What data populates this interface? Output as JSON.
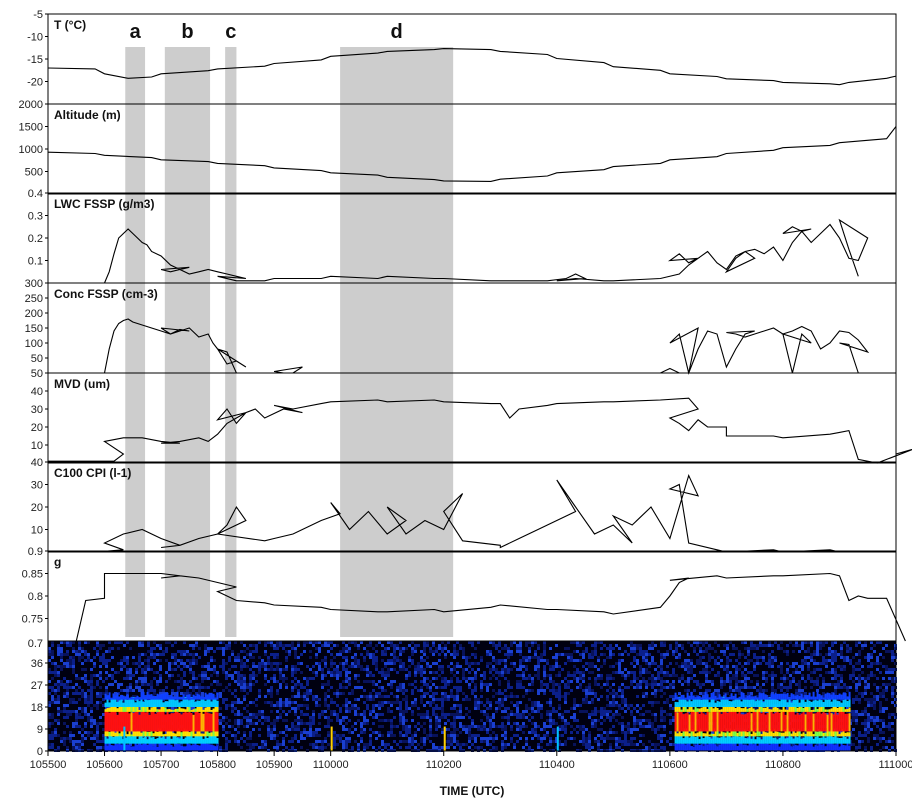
{
  "chart_data": {
    "type": "line",
    "x_range": [
      105500,
      111000
    ],
    "x_ticks": [
      "105500",
      "105600",
      "105700",
      "105800",
      "105900",
      "110000",
      "110200",
      "110400",
      "110600",
      "110800",
      "111000"
    ],
    "xlabel": "TIME (UTC)",
    "bands": [
      {
        "label": "a",
        "x0": 105622,
        "x1": 105643
      },
      {
        "label": "b",
        "x0": 105704,
        "x1": 105752
      },
      {
        "label": "c",
        "x0": 105768,
        "x1": 105820
      },
      {
        "label": "d",
        "x0": 110010,
        "x1": 110210
      }
    ],
    "panels": [
      {
        "label": "T (°C)",
        "ylim": [
          -25,
          -5
        ],
        "yticks": [
          "-5",
          "-10",
          "-15",
          "-20"
        ],
        "series": {
          "x": [
            105500,
            105550,
            105600,
            105625,
            105650,
            105700,
            105750,
            105800,
            105850,
            105900,
            105950,
            110000,
            110050,
            110100,
            110150,
            110200,
            110250,
            110300,
            110350,
            110400,
            110450,
            110500,
            110550,
            110600,
            110650,
            110700,
            110750,
            110800,
            110850,
            110900,
            110910,
            110950,
            111000
          ],
          "y": [
            -17,
            -17.2,
            -18.3,
            -19.3,
            -19,
            -18.3,
            -17.6,
            -17.2,
            -16.6,
            -16,
            -15.2,
            -14.4,
            -13.7,
            -13.3,
            -12.9,
            -12.7,
            -12.9,
            -13.3,
            -14,
            -14.9,
            -15.8,
            -16.7,
            -17.5,
            -18.3,
            -18.9,
            -19.4,
            -19.8,
            -20.2,
            -20.5,
            -20.7,
            -20.2,
            -19.3,
            -18.8
          ]
        }
      },
      {
        "label": "Altitude (m)",
        "ylim": [
          0,
          2000
        ],
        "yticks": [
          "2000",
          "1500",
          "1000",
          "500"
        ],
        "series": {
          "x": [
            105500,
            105550,
            105600,
            105650,
            105700,
            105750,
            105800,
            105850,
            105900,
            105950,
            110000,
            110050,
            110100,
            110150,
            110200,
            110250,
            110300,
            110350,
            110400,
            110450,
            110500,
            110550,
            110600,
            110650,
            110700,
            110750,
            110800,
            110850,
            110900,
            110950,
            111000
          ],
          "y": [
            930,
            900,
            860,
            810,
            760,
            720,
            680,
            630,
            580,
            520,
            470,
            420,
            370,
            320,
            290,
            280,
            330,
            400,
            470,
            540,
            610,
            680,
            760,
            830,
            900,
            970,
            1030,
            1080,
            1140,
            1230,
            1500
          ]
        }
      },
      {
        "label": "LWC FSSP (g/m3)",
        "ylim": [
          0,
          0.4
        ],
        "yticks": [
          "0.4",
          "0.3",
          "0.2",
          "0.1"
        ],
        "series": {
          "x": [
            105600,
            105605,
            105610,
            105615,
            105620,
            105625,
            105630,
            105635,
            105640,
            105645,
            105650,
            105660,
            105670,
            105680,
            105690,
            105700,
            105710,
            105720,
            105730,
            105740,
            105750,
            105760,
            105770,
            105780,
            105790,
            105800,
            105820,
            105850,
            105900,
            105950,
            110000,
            110050,
            110100,
            110150,
            110200,
            110250,
            110300,
            110350,
            110370,
            110380,
            110390,
            110400,
            110420,
            110450,
            110500,
            110550,
            110570,
            110580,
            110590,
            110600,
            110610,
            110620,
            110630,
            110640,
            110650,
            110660,
            110670,
            110680,
            110690,
            110700,
            110710,
            110720,
            110730,
            110740,
            110750,
            110760,
            110770,
            110780,
            110790,
            110800,
            110810,
            110820,
            110830,
            110840,
            110850,
            110860,
            110870,
            110880,
            110890,
            110900,
            110910,
            110920
          ],
          "y": [
            0,
            0.05,
            0.13,
            0.2,
            0.22,
            0.24,
            0.22,
            0.2,
            0.18,
            0.17,
            0.14,
            0.12,
            0.08,
            0.06,
            0.07,
            0.06,
            0.05,
            0.06,
            0.04,
            0.05,
            0.06,
            0.05,
            0.04,
            0.03,
            0.02,
            0.03,
            0.01,
            0.01,
            0.02,
            0.02,
            0.03,
            0.02,
            0.03,
            0.02,
            0.02,
            0.01,
            0.01,
            0.01,
            0.02,
            0.04,
            0.02,
            0.01,
            0.02,
            0.01,
            0.01,
            0.02,
            0.04,
            0.08,
            0.11,
            0.1,
            0.13,
            0.09,
            0.11,
            0.14,
            0.09,
            0.06,
            0.12,
            0.14,
            0.11,
            0.05,
            0.11,
            0.14,
            0.15,
            0.13,
            0.16,
            0.1,
            0.18,
            0.23,
            0.24,
            0.22,
            0.25,
            0.23,
            0.18,
            0.22,
            0.26,
            0.2,
            0.11,
            0.1,
            0.2,
            0.28,
            0.15,
            0.03
          ]
        }
      },
      {
        "label": "Conc FSSP (cm-3)",
        "ylim": [
          0,
          300
        ],
        "yticks": [
          "300",
          "250",
          "200",
          "150",
          "100",
          "50"
        ],
        "series": {
          "x": [
            105600,
            105605,
            105610,
            105615,
            105620,
            105625,
            105630,
            105640,
            105650,
            105660,
            105670,
            105680,
            105690,
            105700,
            105710,
            105720,
            105730,
            105740,
            105750,
            105755,
            105760,
            105770,
            105780,
            105790,
            105800,
            105810,
            105820,
            105880,
            105890,
            105900,
            105910,
            110000,
            110100,
            110200,
            110300,
            110400,
            110500,
            110550,
            110560,
            110570,
            110580,
            110590,
            110600,
            110610,
            110620,
            110630,
            110640,
            110650,
            110660,
            110670,
            110680,
            110690,
            110700,
            110710,
            110720,
            110730,
            110740,
            110750,
            110760,
            110770,
            110780,
            110790,
            110800,
            110810,
            110820,
            110830,
            110840,
            110850,
            110860,
            110870,
            110880,
            110890,
            110900,
            110910,
            110920
          ],
          "y": [
            0,
            80,
            140,
            165,
            175,
            180,
            170,
            160,
            150,
            140,
            130,
            145,
            140,
            150,
            130,
            140,
            150,
            120,
            130,
            100,
            80,
            30,
            40,
            20,
            80,
            70,
            0,
            0,
            20,
            5,
            0,
            0,
            0,
            0,
            0,
            0,
            0,
            0,
            15,
            0,
            0,
            150,
            100,
            130,
            0,
            80,
            140,
            130,
            20,
            80,
            130,
            140,
            135,
            130,
            120,
            130,
            140,
            150,
            130,
            0,
            130,
            100,
            130,
            140,
            155,
            140,
            80,
            100,
            140,
            135,
            110,
            70,
            100,
            95,
            0
          ]
        }
      },
      {
        "label": "MVD (um)",
        "ylim": [
          0,
          50
        ],
        "yticks": [
          "50",
          "40",
          "30",
          "20",
          "10"
        ],
        "series": {
          "x": [
            105500,
            105550,
            105570,
            105580,
            105600,
            105620,
            105640,
            105660,
            105680,
            105700,
            105720,
            105740,
            105750,
            105760,
            105770,
            105780,
            105790,
            105800,
            105810,
            105820,
            105830,
            105840,
            105850,
            105870,
            105890,
            105900,
            105920,
            105950,
            110000,
            110050,
            110100,
            110150,
            110200,
            110250,
            110300,
            110310,
            110320,
            110350,
            110400,
            110450,
            110500,
            110550,
            110580,
            110590,
            110600,
            110610,
            110620,
            110630,
            110640,
            110660,
            110700,
            110750,
            110800,
            110850,
            110900,
            110910,
            110920,
            110940,
            110960,
            110980,
            111000
          ],
          "y": [
            1,
            1,
            1,
            5,
            12,
            14,
            14,
            12,
            11,
            11,
            12,
            14,
            12,
            16,
            22,
            25,
            28,
            24,
            30,
            22,
            28,
            30,
            25,
            30,
            28,
            32,
            30,
            33,
            34,
            35,
            34,
            35,
            34,
            33,
            33,
            25,
            30,
            32,
            33,
            34,
            34,
            35,
            36,
            30,
            25,
            22,
            18,
            24,
            20,
            20,
            15,
            15,
            14,
            16,
            17,
            18,
            2,
            0,
            4,
            8,
            5
          ]
        }
      },
      {
        "label": "C100 CPI (l-1)",
        "ylim": [
          0,
          40
        ],
        "yticks": [
          "40",
          "30",
          "20",
          "10"
        ],
        "series": {
          "x": [
            105500,
            105550,
            105580,
            105600,
            105620,
            105640,
            105660,
            105680,
            105700,
            105720,
            105740,
            105760,
            105770,
            105780,
            105790,
            105800,
            105850,
            105900,
            105920,
            105950,
            105970,
            110000,
            110020,
            110040,
            110060,
            110080,
            110100,
            110120,
            110140,
            110160,
            110180,
            110200,
            110220,
            110260,
            110300,
            110320,
            110340,
            110360,
            110380,
            110400,
            110420,
            110440,
            110460,
            110480,
            110500,
            110520,
            110540,
            110560,
            110580,
            110590,
            110600,
            110610,
            110620,
            110650,
            110700,
            110750,
            110800,
            110850,
            110900,
            111000
          ],
          "y": [
            0,
            0,
            1,
            4,
            8,
            10,
            6,
            3,
            2,
            3,
            6,
            8,
            12,
            20,
            14,
            8,
            5,
            6,
            8,
            14,
            17,
            22,
            10,
            18,
            8,
            14,
            20,
            8,
            14,
            10,
            26,
            18,
            5,
            3,
            2,
            6,
            10,
            14,
            18,
            32,
            20,
            8,
            12,
            4,
            16,
            12,
            20,
            6,
            34,
            25,
            28,
            30,
            4,
            1,
            0,
            1,
            0,
            1,
            0,
            0
          ]
        }
      },
      {
        "label": "g",
        "ylim": [
          0.7,
          0.9
        ],
        "yticks": [
          "0.9",
          "0.85",
          "0.8",
          "0.75"
        ],
        "series": {
          "x": [
            105530,
            105540,
            105560,
            105600,
            105620,
            105640,
            105660,
            105680,
            105700,
            105720,
            105740,
            105760,
            105780,
            105800,
            105820,
            105850,
            105900,
            105950,
            110000,
            110050,
            110100,
            110150,
            110200,
            110250,
            110300,
            110350,
            110400,
            110450,
            110500,
            110550,
            110560,
            110570,
            110580,
            110600,
            110650,
            110700,
            110750,
            110800,
            110850,
            110900,
            110910,
            110920,
            110930,
            110950,
            110970
          ],
          "y": [
            0.7,
            0.79,
            0.795,
            0.85,
            0.85,
            0.85,
            0.85,
            0.845,
            0.84,
            0.845,
            0.84,
            0.83,
            0.82,
            0.81,
            0.79,
            0.785,
            0.78,
            0.775,
            0.77,
            0.765,
            0.765,
            0.77,
            0.765,
            0.775,
            0.78,
            0.77,
            0.77,
            0.765,
            0.76,
            0.775,
            0.8,
            0.83,
            0.84,
            0.835,
            0.845,
            0.84,
            0.845,
            0.845,
            0.85,
            0.845,
            0.79,
            0.8,
            0.795,
            0.795,
            0.7
          ]
        }
      }
    ],
    "heatmap": {
      "ylim": [
        0,
        45
      ],
      "yticks": [
        "36",
        "27",
        "18",
        "9",
        "0"
      ],
      "bands_yrange": [
        [
          0,
          22
        ]
      ],
      "active_spans": [
        {
          "x0": 105600,
          "x1": 105800,
          "intensity": "high"
        },
        {
          "x0": 105880,
          "x1": 105900,
          "intensity": "low"
        },
        {
          "x0": 110565,
          "x1": 110910,
          "intensity": "high"
        }
      ]
    }
  }
}
